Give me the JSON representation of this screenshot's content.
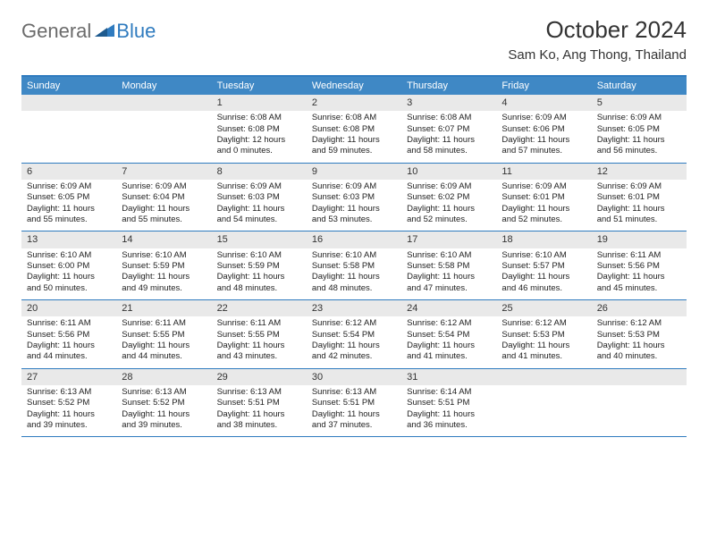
{
  "logo": {
    "word1": "General",
    "word2": "Blue"
  },
  "title": "October 2024",
  "location": "Sam Ko, Ang Thong, Thailand",
  "colors": {
    "header_bg": "#3f88c5",
    "header_text": "#ffffff",
    "border": "#2f7bbf",
    "daynum_bg": "#e9e9e9",
    "logo_gray": "#6b6b6b",
    "logo_blue": "#2f7bbf"
  },
  "weekdays": [
    "Sunday",
    "Monday",
    "Tuesday",
    "Wednesday",
    "Thursday",
    "Friday",
    "Saturday"
  ],
  "weeks": [
    [
      {
        "n": "",
        "sr": "",
        "ss": "",
        "dl": ""
      },
      {
        "n": "",
        "sr": "",
        "ss": "",
        "dl": ""
      },
      {
        "n": "1",
        "sr": "Sunrise: 6:08 AM",
        "ss": "Sunset: 6:08 PM",
        "dl": "Daylight: 12 hours and 0 minutes."
      },
      {
        "n": "2",
        "sr": "Sunrise: 6:08 AM",
        "ss": "Sunset: 6:08 PM",
        "dl": "Daylight: 11 hours and 59 minutes."
      },
      {
        "n": "3",
        "sr": "Sunrise: 6:08 AM",
        "ss": "Sunset: 6:07 PM",
        "dl": "Daylight: 11 hours and 58 minutes."
      },
      {
        "n": "4",
        "sr": "Sunrise: 6:09 AM",
        "ss": "Sunset: 6:06 PM",
        "dl": "Daylight: 11 hours and 57 minutes."
      },
      {
        "n": "5",
        "sr": "Sunrise: 6:09 AM",
        "ss": "Sunset: 6:05 PM",
        "dl": "Daylight: 11 hours and 56 minutes."
      }
    ],
    [
      {
        "n": "6",
        "sr": "Sunrise: 6:09 AM",
        "ss": "Sunset: 6:05 PM",
        "dl": "Daylight: 11 hours and 55 minutes."
      },
      {
        "n": "7",
        "sr": "Sunrise: 6:09 AM",
        "ss": "Sunset: 6:04 PM",
        "dl": "Daylight: 11 hours and 55 minutes."
      },
      {
        "n": "8",
        "sr": "Sunrise: 6:09 AM",
        "ss": "Sunset: 6:03 PM",
        "dl": "Daylight: 11 hours and 54 minutes."
      },
      {
        "n": "9",
        "sr": "Sunrise: 6:09 AM",
        "ss": "Sunset: 6:03 PM",
        "dl": "Daylight: 11 hours and 53 minutes."
      },
      {
        "n": "10",
        "sr": "Sunrise: 6:09 AM",
        "ss": "Sunset: 6:02 PM",
        "dl": "Daylight: 11 hours and 52 minutes."
      },
      {
        "n": "11",
        "sr": "Sunrise: 6:09 AM",
        "ss": "Sunset: 6:01 PM",
        "dl": "Daylight: 11 hours and 52 minutes."
      },
      {
        "n": "12",
        "sr": "Sunrise: 6:09 AM",
        "ss": "Sunset: 6:01 PM",
        "dl": "Daylight: 11 hours and 51 minutes."
      }
    ],
    [
      {
        "n": "13",
        "sr": "Sunrise: 6:10 AM",
        "ss": "Sunset: 6:00 PM",
        "dl": "Daylight: 11 hours and 50 minutes."
      },
      {
        "n": "14",
        "sr": "Sunrise: 6:10 AM",
        "ss": "Sunset: 5:59 PM",
        "dl": "Daylight: 11 hours and 49 minutes."
      },
      {
        "n": "15",
        "sr": "Sunrise: 6:10 AM",
        "ss": "Sunset: 5:59 PM",
        "dl": "Daylight: 11 hours and 48 minutes."
      },
      {
        "n": "16",
        "sr": "Sunrise: 6:10 AM",
        "ss": "Sunset: 5:58 PM",
        "dl": "Daylight: 11 hours and 48 minutes."
      },
      {
        "n": "17",
        "sr": "Sunrise: 6:10 AM",
        "ss": "Sunset: 5:58 PM",
        "dl": "Daylight: 11 hours and 47 minutes."
      },
      {
        "n": "18",
        "sr": "Sunrise: 6:10 AM",
        "ss": "Sunset: 5:57 PM",
        "dl": "Daylight: 11 hours and 46 minutes."
      },
      {
        "n": "19",
        "sr": "Sunrise: 6:11 AM",
        "ss": "Sunset: 5:56 PM",
        "dl": "Daylight: 11 hours and 45 minutes."
      }
    ],
    [
      {
        "n": "20",
        "sr": "Sunrise: 6:11 AM",
        "ss": "Sunset: 5:56 PM",
        "dl": "Daylight: 11 hours and 44 minutes."
      },
      {
        "n": "21",
        "sr": "Sunrise: 6:11 AM",
        "ss": "Sunset: 5:55 PM",
        "dl": "Daylight: 11 hours and 44 minutes."
      },
      {
        "n": "22",
        "sr": "Sunrise: 6:11 AM",
        "ss": "Sunset: 5:55 PM",
        "dl": "Daylight: 11 hours and 43 minutes."
      },
      {
        "n": "23",
        "sr": "Sunrise: 6:12 AM",
        "ss": "Sunset: 5:54 PM",
        "dl": "Daylight: 11 hours and 42 minutes."
      },
      {
        "n": "24",
        "sr": "Sunrise: 6:12 AM",
        "ss": "Sunset: 5:54 PM",
        "dl": "Daylight: 11 hours and 41 minutes."
      },
      {
        "n": "25",
        "sr": "Sunrise: 6:12 AM",
        "ss": "Sunset: 5:53 PM",
        "dl": "Daylight: 11 hours and 41 minutes."
      },
      {
        "n": "26",
        "sr": "Sunrise: 6:12 AM",
        "ss": "Sunset: 5:53 PM",
        "dl": "Daylight: 11 hours and 40 minutes."
      }
    ],
    [
      {
        "n": "27",
        "sr": "Sunrise: 6:13 AM",
        "ss": "Sunset: 5:52 PM",
        "dl": "Daylight: 11 hours and 39 minutes."
      },
      {
        "n": "28",
        "sr": "Sunrise: 6:13 AM",
        "ss": "Sunset: 5:52 PM",
        "dl": "Daylight: 11 hours and 39 minutes."
      },
      {
        "n": "29",
        "sr": "Sunrise: 6:13 AM",
        "ss": "Sunset: 5:51 PM",
        "dl": "Daylight: 11 hours and 38 minutes."
      },
      {
        "n": "30",
        "sr": "Sunrise: 6:13 AM",
        "ss": "Sunset: 5:51 PM",
        "dl": "Daylight: 11 hours and 37 minutes."
      },
      {
        "n": "31",
        "sr": "Sunrise: 6:14 AM",
        "ss": "Sunset: 5:51 PM",
        "dl": "Daylight: 11 hours and 36 minutes."
      },
      {
        "n": "",
        "sr": "",
        "ss": "",
        "dl": ""
      },
      {
        "n": "",
        "sr": "",
        "ss": "",
        "dl": ""
      }
    ]
  ]
}
